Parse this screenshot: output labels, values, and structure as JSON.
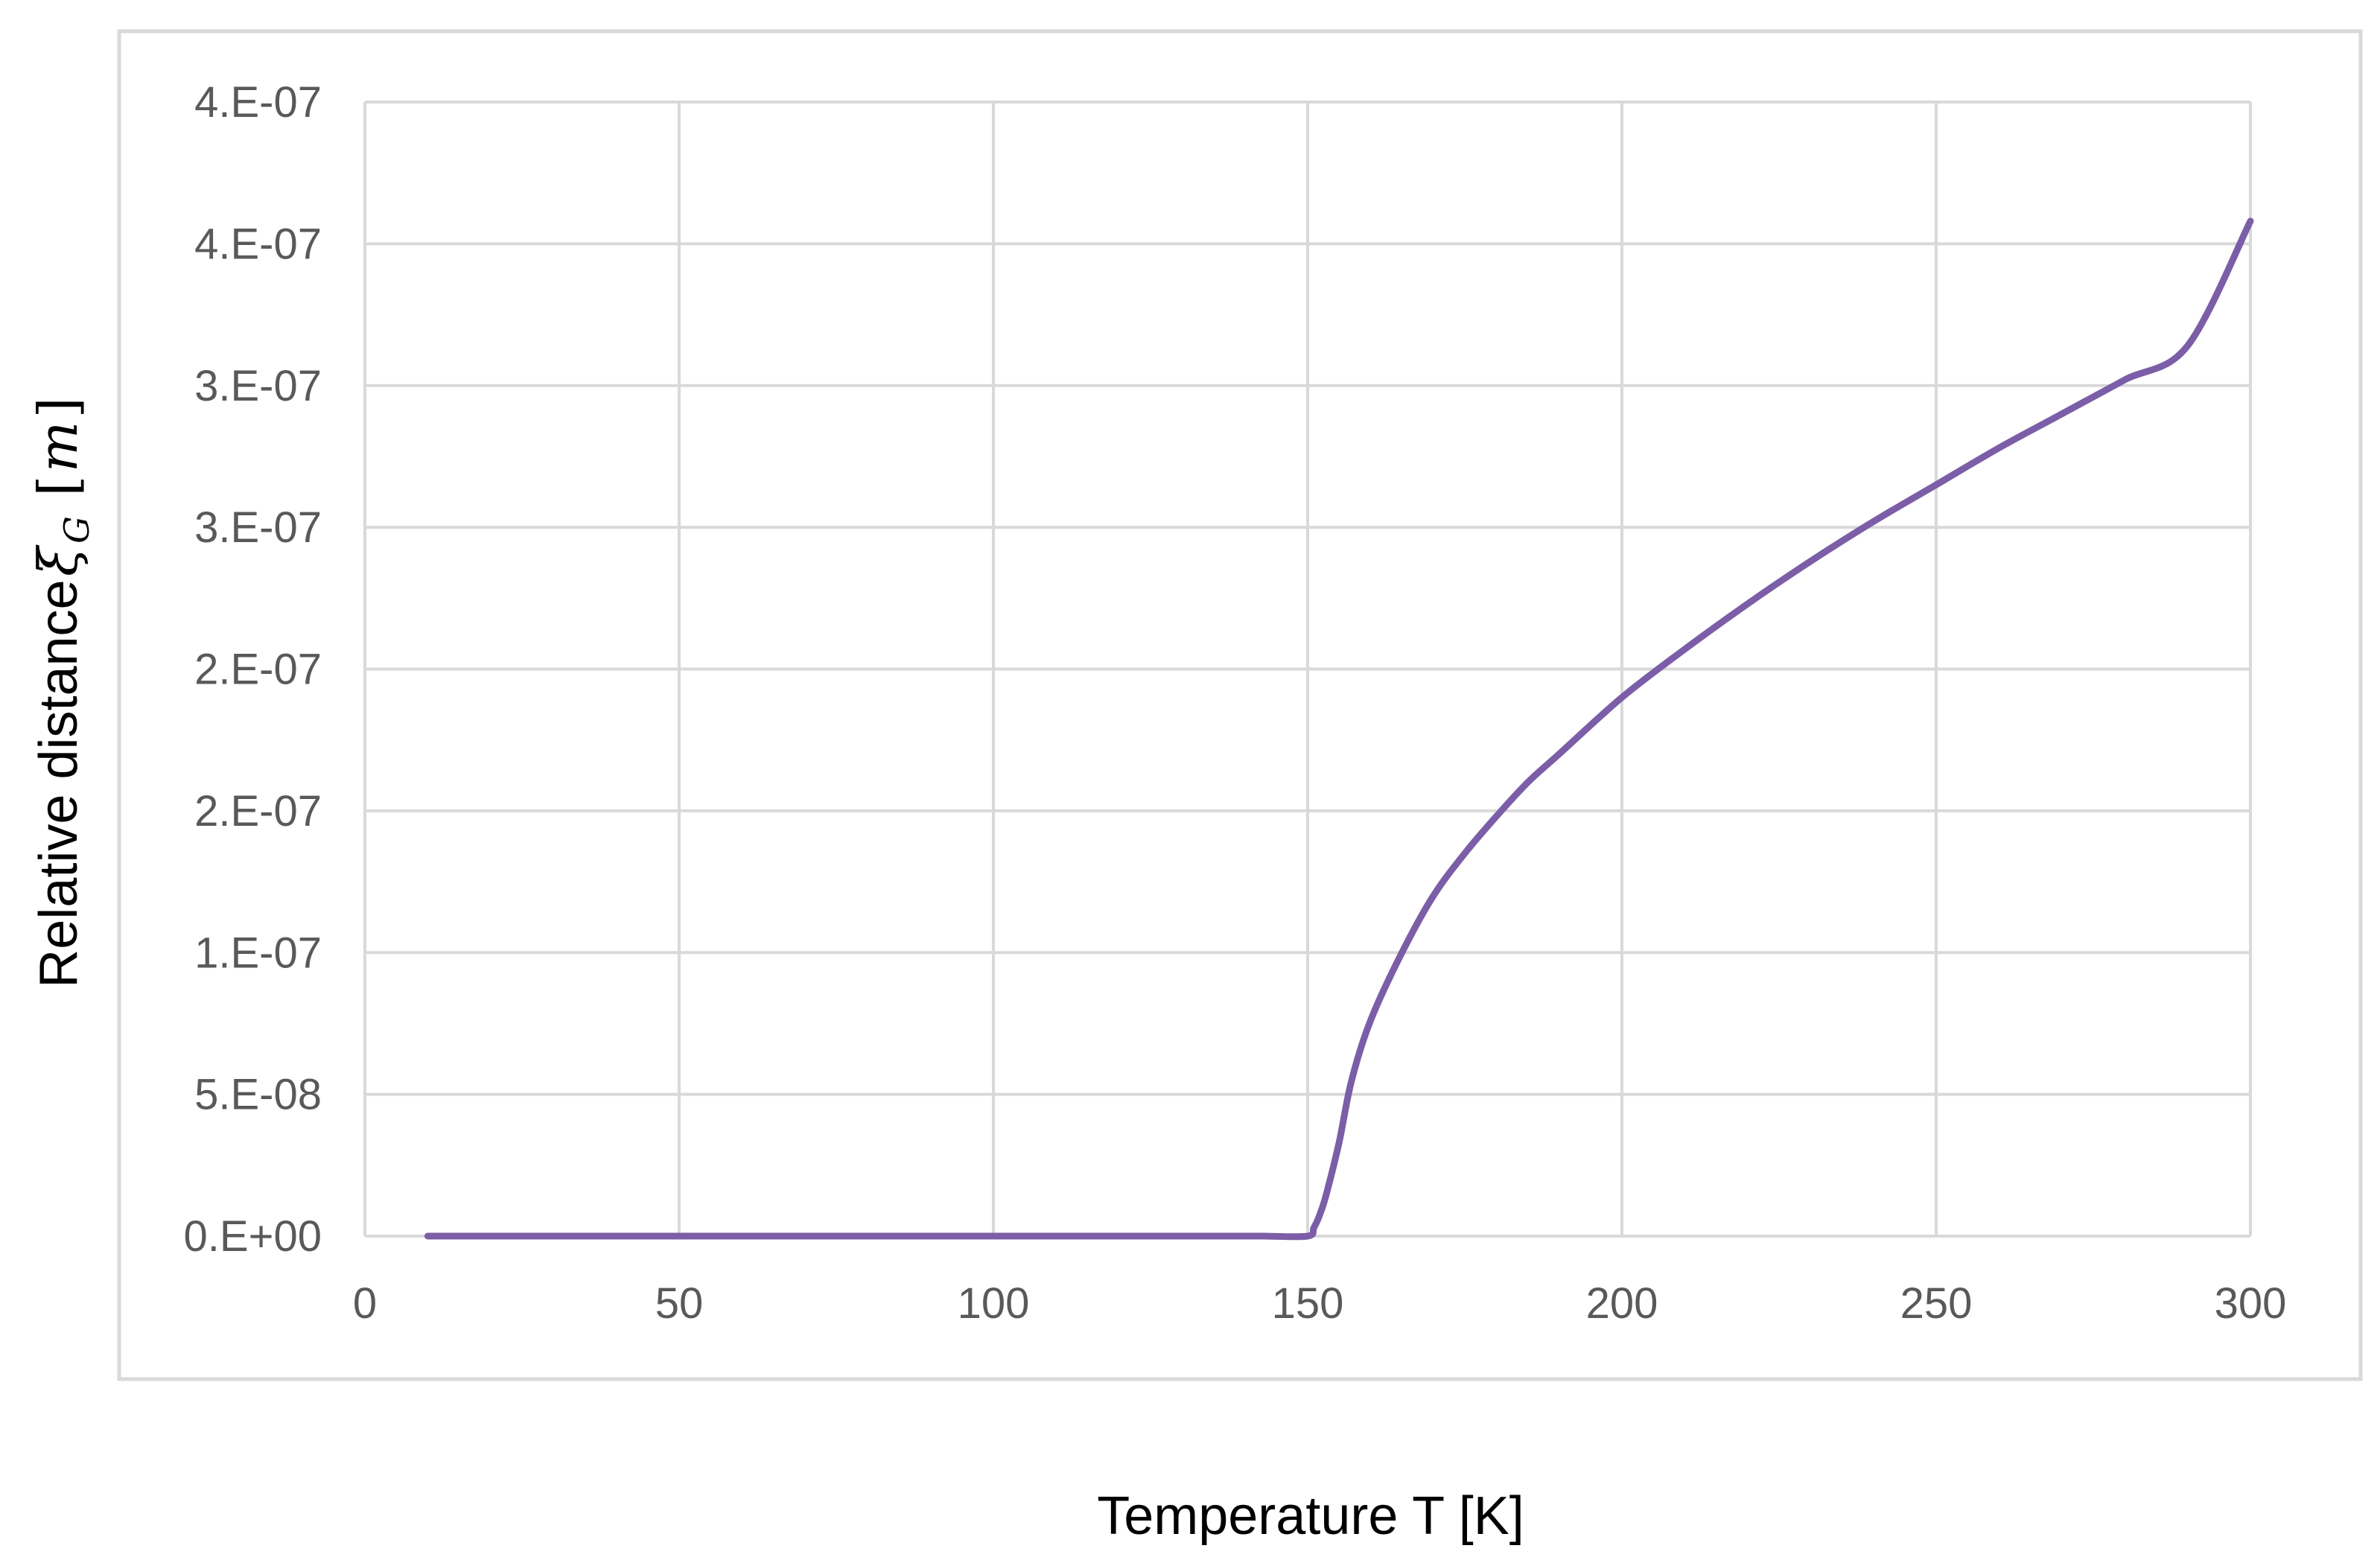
{
  "chart_data": {
    "type": "line",
    "xlabel": "Temperature T [K]",
    "ylabel": {
      "text": "Relative distance",
      "symbol": "ξ",
      "subscript": "G",
      "unit_open": "[",
      "unit": "m",
      "unit_close": "]"
    },
    "xlim": [
      0,
      300
    ],
    "ylim": [
      0,
      4e-07
    ],
    "x_ticks": [
      0,
      50,
      100,
      150,
      200,
      250,
      300
    ],
    "x_tick_labels": [
      "0",
      "50",
      "100",
      "150",
      "200",
      "250",
      "300"
    ],
    "y_ticks": [
      0,
      5e-08,
      1e-07,
      1.5e-07,
      2e-07,
      2.5e-07,
      3e-07,
      3.5e-07,
      4e-07
    ],
    "y_tick_labels": [
      "0.E+00",
      "5.E-08",
      "1.E-07",
      "2.E-07",
      "2.E-07",
      "3.E-07",
      "3.E-07",
      "4.E-07",
      "4.E-07"
    ],
    "grid": true,
    "series": [
      {
        "color": "#7B5EA7",
        "x": [
          10,
          20,
          40,
          60,
          80,
          100,
          120,
          140,
          143,
          150,
          151,
          152,
          153,
          155,
          157,
          160,
          165,
          170,
          175,
          180,
          185,
          190,
          200,
          210,
          220,
          230,
          240,
          250,
          260,
          270,
          280,
          290,
          300
        ],
        "y": [
          0,
          0,
          0,
          0,
          0,
          0,
          0,
          0,
          0,
          0,
          3e-09,
          8e-09,
          1.5e-08,
          3.3e-08,
          5.5e-08,
          7.6e-08,
          1e-07,
          1.2e-07,
          1.35e-07,
          1.48e-07,
          1.6e-07,
          1.7e-07,
          1.9e-07,
          2.07e-07,
          2.23e-07,
          2.38e-07,
          2.52e-07,
          2.65e-07,
          2.78e-07,
          2.9e-07,
          3.02e-07,
          3.14e-07,
          3.58e-07
        ]
      }
    ]
  }
}
